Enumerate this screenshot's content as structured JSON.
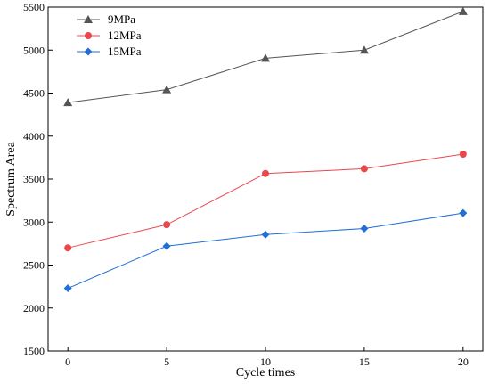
{
  "chart_data": {
    "type": "line",
    "title": "",
    "xlabel": "Cycle times",
    "ylabel": "Spectrum Area",
    "x": [
      0,
      5,
      10,
      15,
      20
    ],
    "xticks": [
      0,
      5,
      10,
      15,
      20
    ],
    "yticks": [
      1500,
      2000,
      2500,
      3000,
      3500,
      4000,
      4500,
      5000,
      5500
    ],
    "xlim": [
      -1,
      21
    ],
    "ylim": [
      1500,
      5500
    ],
    "grid": false,
    "legend_position": "top-left",
    "series": [
      {
        "name": "9MPa",
        "values": [
          4390,
          4540,
          4905,
          5000,
          5450
        ],
        "color": "#555555",
        "marker": "triangle"
      },
      {
        "name": "12MPa",
        "values": [
          2700,
          2970,
          3565,
          3620,
          3790
        ],
        "color": "#e8474c",
        "marker": "circle"
      },
      {
        "name": "15MPa",
        "values": [
          2230,
          2720,
          2855,
          2925,
          3105
        ],
        "color": "#1f6fd6",
        "marker": "diamond"
      }
    ]
  }
}
